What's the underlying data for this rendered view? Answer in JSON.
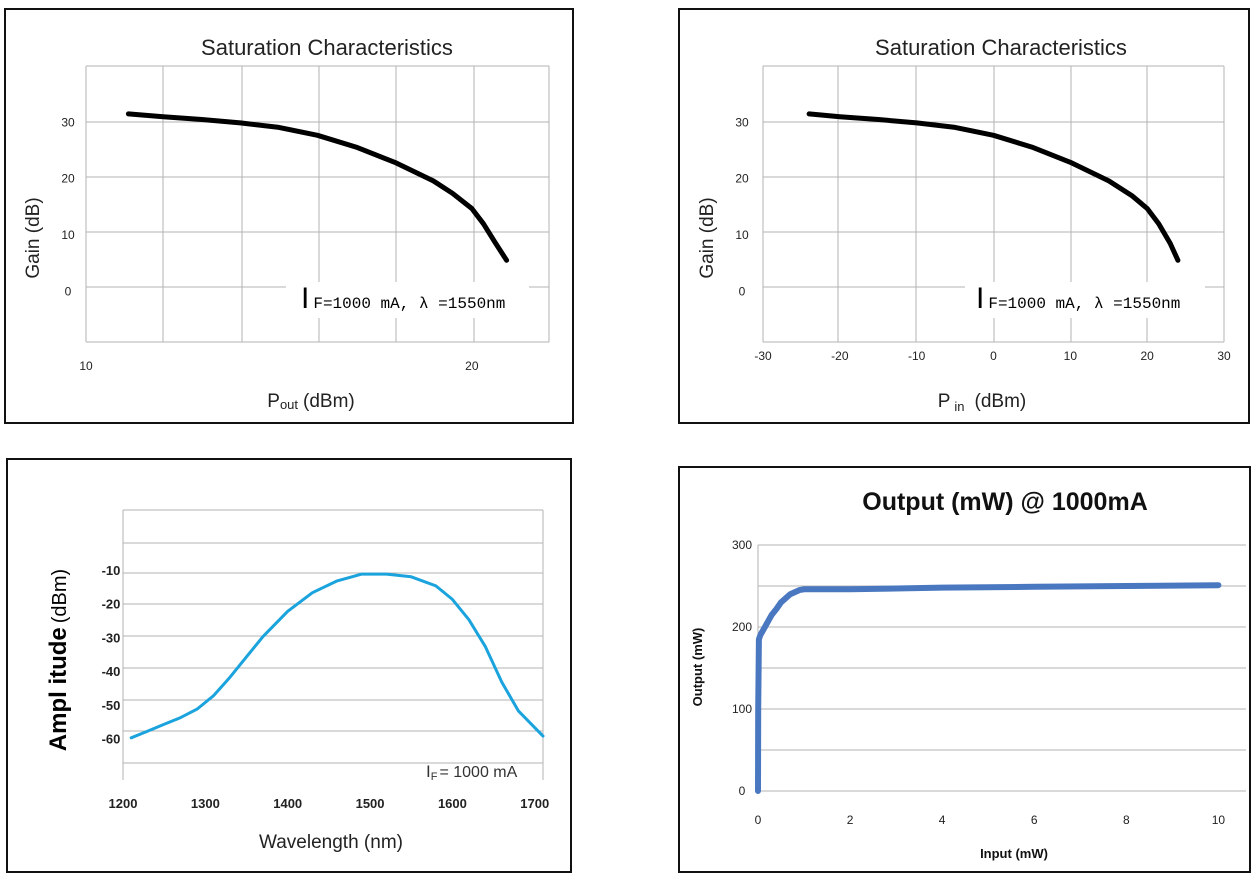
{
  "chart_data": [
    {
      "type": "line",
      "title": "Saturation Characteristics",
      "xlabel": "Pout (dBm)",
      "xlabel_main": "P",
      "xlabel_sub": "out",
      "xlabel_unit": "(dBm)",
      "ylabel": "Gain (dB)",
      "annotation": {
        "main": "I",
        "sub": "F=1000 mA, λ =1550nm"
      },
      "x_ticks": [
        10,
        20
      ],
      "y_ticks": [
        0,
        10,
        20,
        30
      ],
      "xlim": [
        10,
        22
      ],
      "ylim": [
        -9,
        40
      ],
      "grid": true,
      "series": [
        {
          "x": [
            11.1,
            12.0,
            13.0,
            14.0,
            15.0,
            16.0,
            17.0,
            18.0,
            19.0,
            19.5,
            20.0,
            20.3,
            20.6,
            20.9
          ],
          "y": [
            31.5,
            31.0,
            30.5,
            29.9,
            29.1,
            27.7,
            25.6,
            22.9,
            19.6,
            17.4,
            14.7,
            12.0,
            8.7,
            5.5
          ],
          "color": "#000000"
        }
      ]
    },
    {
      "type": "line",
      "title": "Saturation Characteristics",
      "xlabel": "P in (dBm)",
      "xlabel_main": "P",
      "xlabel_sub": "in",
      "xlabel_unit": "(dBm)",
      "ylabel": "Gain (dB)",
      "annotation": {
        "main": "I",
        "sub": "F=1000 mA, λ =1550nm"
      },
      "x_ticks": [
        -30,
        -20,
        -10,
        0,
        10,
        20,
        30
      ],
      "y_ticks": [
        0,
        10,
        20,
        30
      ],
      "xlim": [
        -30,
        30
      ],
      "ylim": [
        -9,
        40
      ],
      "grid": true,
      "series": [
        {
          "x": [
            -24.0,
            -20.0,
            -15.0,
            -10.0,
            -5.0,
            0.0,
            5.0,
            10.0,
            15.0,
            18.0,
            20.0,
            21.5,
            23.0,
            24.0
          ],
          "y": [
            31.5,
            31.0,
            30.5,
            29.9,
            29.1,
            27.7,
            25.6,
            22.9,
            19.6,
            17.0,
            14.7,
            12.0,
            8.5,
            5.5
          ],
          "color": "#000000"
        }
      ]
    },
    {
      "type": "line",
      "title": "",
      "xlabel": "Wavelength (nm)",
      "ylabel": "Amplitude (dBm)",
      "ylabel_main": "Ampl itude",
      "ylabel_unit": "(dBm)",
      "annotation": {
        "main": "I",
        "sub": "F",
        "rest": "= 1000 mA"
      },
      "x_ticks": [
        1200,
        1300,
        1400,
        1500,
        1600,
        1700
      ],
      "y_ticks": [
        -60,
        -50,
        -40,
        -30,
        -20,
        -10
      ],
      "xlim": [
        1200,
        1710
      ],
      "ylim": [
        -72,
        8
      ],
      "grid": true,
      "series": [
        {
          "x": [
            1210,
            1230,
            1250,
            1270,
            1290,
            1310,
            1330,
            1350,
            1370,
            1400,
            1430,
            1460,
            1490,
            1520,
            1550,
            1580,
            1600,
            1620,
            1640,
            1660,
            1680,
            1700,
            1710
          ],
          "y": [
            -59.5,
            -57.5,
            -55.5,
            -53.5,
            -51.0,
            -47.0,
            -41.5,
            -35.5,
            -29.5,
            -22.0,
            -16.5,
            -13.0,
            -11.0,
            -11.0,
            -11.8,
            -14.5,
            -18.5,
            -24.5,
            -32.5,
            -43.0,
            -51.5,
            -56.5,
            -59.0
          ],
          "color": "#1aa3dc"
        }
      ]
    },
    {
      "type": "line",
      "title": "Output (mW) @ 1000mA",
      "xlabel": "Input (mW)",
      "ylabel": "Output (mW)",
      "x_ticks": [
        0,
        2,
        4,
        6,
        8,
        10
      ],
      "y_ticks": [
        0,
        100,
        200,
        300
      ],
      "xlim": [
        0,
        10.6
      ],
      "ylim": [
        0,
        300
      ],
      "grid": true,
      "series": [
        {
          "x": [
            0.0,
            0.005,
            0.02,
            0.05,
            0.1,
            0.2,
            0.3,
            0.4,
            0.5,
            0.7,
            0.9,
            1.0,
            1.5,
            2,
            4,
            6,
            8,
            10
          ],
          "y": [
            0,
            100,
            185,
            190,
            195,
            205,
            215,
            222,
            230,
            240,
            245,
            246,
            246,
            246,
            248,
            249,
            250,
            251
          ],
          "color": "#4a78c0"
        }
      ]
    }
  ]
}
